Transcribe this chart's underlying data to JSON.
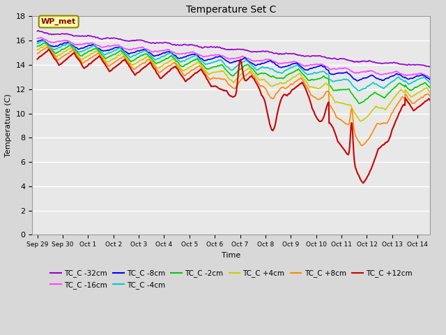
{
  "title": "Temperature Set C",
  "xlabel": "Time",
  "ylabel": "Temperature (C)",
  "ylim": [
    0,
    18
  ],
  "series": [
    {
      "label": "TC_C -32cm",
      "color": "#9900cc",
      "lw": 1.2
    },
    {
      "label": "TC_C -16cm",
      "color": "#ff44ff",
      "lw": 1.2
    },
    {
      "label": "TC_C -8cm",
      "color": "#0000ff",
      "lw": 1.2
    },
    {
      "label": "TC_C -4cm",
      "color": "#00cccc",
      "lw": 1.2
    },
    {
      "label": "TC_C -2cm",
      "color": "#00cc00",
      "lw": 1.2
    },
    {
      "label": "TC_C +4cm",
      "color": "#cccc00",
      "lw": 1.2
    },
    {
      "label": "TC_C +8cm",
      "color": "#ff8800",
      "lw": 1.2
    },
    {
      "label": "TC_C +12cm",
      "color": "#cc0000",
      "lw": 1.5
    }
  ],
  "wp_met_label": "WP_met",
  "xtick_labels": [
    "Sep 29",
    "Sep 30",
    "Oct 1",
    "Oct 2",
    "Oct 3",
    "Oct 4",
    "Oct 5",
    "Oct 6",
    "Oct 7",
    "Oct 8",
    "Oct 9",
    "Oct 10",
    "Oct 11",
    "Oct 12",
    "Oct 13",
    "Oct 14"
  ],
  "ytick_values": [
    0,
    2,
    4,
    6,
    8,
    10,
    12,
    14,
    16,
    18
  ],
  "fig_width": 6.4,
  "fig_height": 4.8,
  "dpi": 100
}
